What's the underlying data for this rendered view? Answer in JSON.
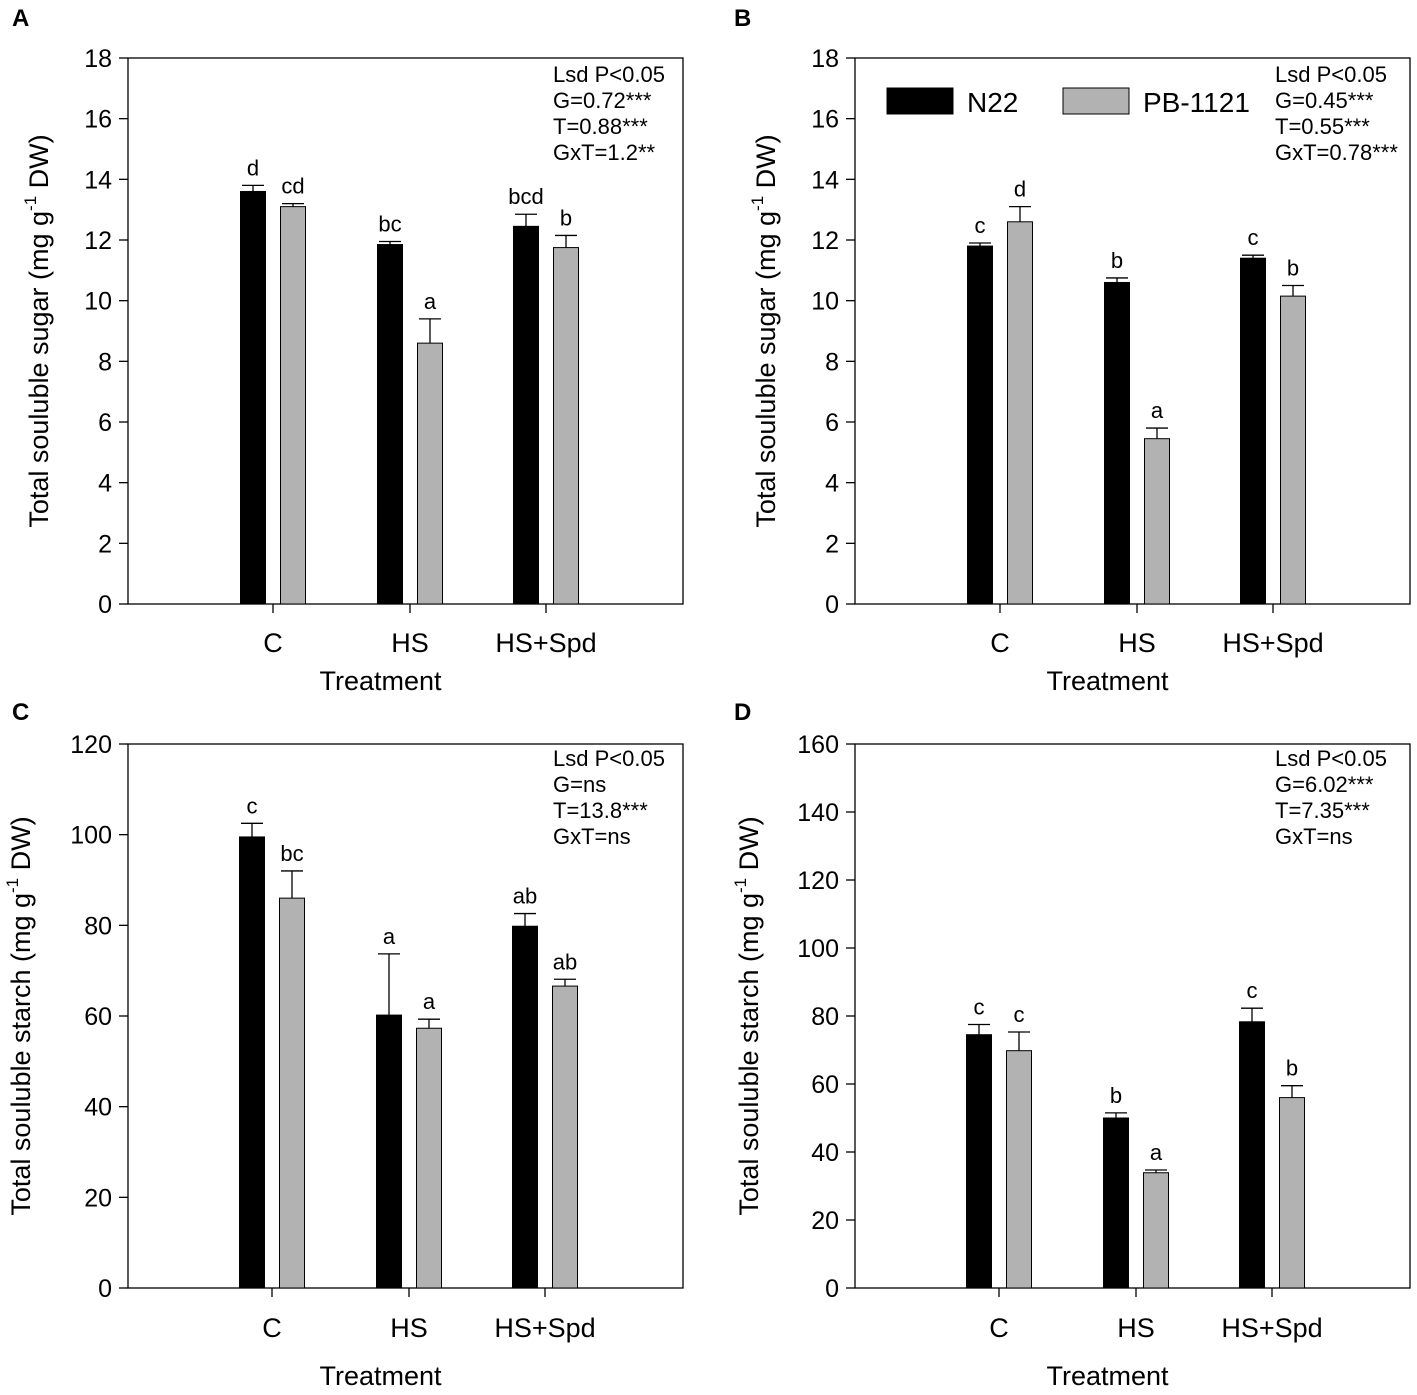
{
  "colors": {
    "N22": "#000000",
    "PB-1121": "#b2b2b2",
    "axis": "#000000"
  },
  "chart_data": [
    {
      "panel": "A",
      "type": "bar",
      "categories": [
        "C",
        "HS",
        "HS+Spd"
      ],
      "xlabel": "Treatment",
      "ylabel": "Total souluble sugar (mg g-1 DW)",
      "ylabel_parts": {
        "before": "Total souluble sugar (mg g",
        "sup": "-1",
        "after": " DW)"
      },
      "ylim": [
        0,
        18
      ],
      "yticks": [
        0,
        2,
        4,
        6,
        8,
        10,
        12,
        14,
        16,
        18
      ],
      "series": [
        {
          "name": "N22",
          "values": [
            13.6,
            11.85,
            12.45
          ],
          "errors": [
            0.2,
            0.1,
            0.4
          ],
          "letters": [
            "d",
            "bc",
            "bcd"
          ]
        },
        {
          "name": "PB-1121",
          "values": [
            13.1,
            8.6,
            11.75
          ],
          "errors": [
            0.1,
            0.8,
            0.4
          ],
          "letters": [
            "cd",
            "a",
            "b"
          ]
        }
      ],
      "stats": [
        "Lsd P<0.05",
        "G=0.72***",
        "T=0.88***",
        "GxT=1.2**"
      ],
      "legend": false
    },
    {
      "panel": "B",
      "type": "bar",
      "categories": [
        "C",
        "HS",
        "HS+Spd"
      ],
      "xlabel": "Treatment",
      "ylabel": "Total souluble sugar (mg g-1 DW)",
      "ylabel_parts": {
        "before": "Total souluble sugar (mg g",
        "sup": "-1",
        "after": " DW)"
      },
      "ylim": [
        0,
        18
      ],
      "yticks": [
        0,
        2,
        4,
        6,
        8,
        10,
        12,
        14,
        16,
        18
      ],
      "series": [
        {
          "name": "N22",
          "values": [
            11.8,
            10.6,
            11.4
          ],
          "errors": [
            0.1,
            0.15,
            0.1
          ],
          "letters": [
            "c",
            "b",
            "c"
          ]
        },
        {
          "name": "PB-1121",
          "values": [
            12.6,
            5.45,
            10.15
          ],
          "errors": [
            0.5,
            0.35,
            0.35
          ],
          "letters": [
            "d",
            "a",
            "b"
          ]
        }
      ],
      "stats": [
        "Lsd P<0.05",
        "G=0.45***",
        "T=0.55***",
        "GxT=0.78***"
      ],
      "legend": true
    },
    {
      "panel": "C",
      "type": "bar",
      "categories": [
        "C",
        "HS",
        "HS+Spd"
      ],
      "xlabel": "Treatment",
      "ylabel": "Total souluble starch (mg g-1 DW)",
      "ylabel_parts": {
        "before": "Total souluble starch (mg g",
        "sup": "-1",
        "after": " DW)"
      },
      "ylim": [
        0,
        120
      ],
      "yticks": [
        0,
        20,
        40,
        60,
        80,
        100,
        120
      ],
      "series": [
        {
          "name": "N22",
          "values": [
            99.5,
            60.2,
            79.8
          ],
          "errors": [
            3.0,
            13.5,
            2.8
          ],
          "letters": [
            "c",
            "a",
            "ab"
          ]
        },
        {
          "name": "PB-1121",
          "values": [
            86.0,
            57.3,
            66.6
          ],
          "errors": [
            6.0,
            2.0,
            1.5
          ],
          "letters": [
            "bc",
            "a",
            "ab"
          ]
        }
      ],
      "stats": [
        "Lsd P<0.05",
        "G=ns",
        "T=13.8***",
        "GxT=ns"
      ],
      "legend": false
    },
    {
      "panel": "D",
      "type": "bar",
      "categories": [
        "C",
        "HS",
        "HS+Spd"
      ],
      "xlabel": "Treatment",
      "ylabel": "Total souluble starch (mg g-1 DW)",
      "ylabel_parts": {
        "before": "Total souluble starch (mg g",
        "sup": "-1",
        "after": " DW)"
      },
      "ylim": [
        0,
        160
      ],
      "yticks": [
        0,
        20,
        40,
        60,
        80,
        100,
        120,
        140,
        160
      ],
      "series": [
        {
          "name": "N22",
          "values": [
            74.5,
            50.0,
            78.3
          ],
          "errors": [
            3.0,
            1.5,
            4.0
          ],
          "letters": [
            "c",
            "b",
            "c"
          ]
        },
        {
          "name": "PB-1121",
          "values": [
            69.8,
            33.9,
            56.0
          ],
          "errors": [
            5.5,
            0.8,
            3.5
          ],
          "letters": [
            "c",
            "a",
            "b"
          ]
        }
      ],
      "stats": [
        "Lsd P<0.05",
        "G=6.02***",
        "T=7.35***",
        "GxT=ns"
      ],
      "legend": false
    }
  ]
}
